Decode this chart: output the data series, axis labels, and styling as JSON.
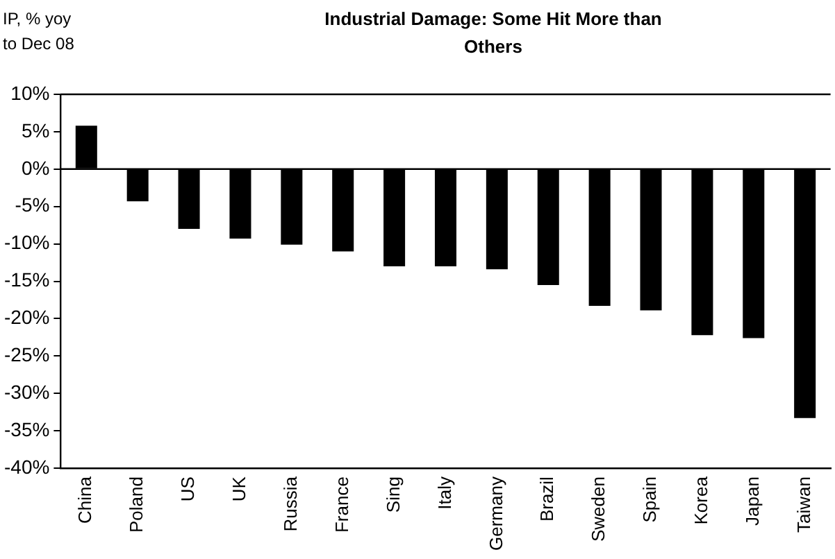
{
  "chart_data": {
    "type": "bar",
    "title": "Industrial Damage: Some Hit More than Others",
    "ylabel": "IP, % yoy to Dec 08",
    "categories": [
      "China",
      "Poland",
      "US",
      "UK",
      "Russia",
      "France",
      "Sing",
      "Italy",
      "Germany",
      "Brazil",
      "Sweden",
      "Spain",
      "Korea",
      "Japan",
      "Taiwan"
    ],
    "values": [
      5.8,
      -4.3,
      -8.0,
      -9.3,
      -10.1,
      -11.0,
      -13.0,
      -13.0,
      -13.4,
      -15.5,
      -18.3,
      -18.9,
      -22.2,
      -22.6,
      -33.3
    ],
    "color": "#000000",
    "ylim": [
      -40,
      10
    ],
    "yticks": [
      {
        "value": -40,
        "label": "-40%"
      },
      {
        "value": -35,
        "label": "-35%"
      },
      {
        "value": -30,
        "label": "-30%"
      },
      {
        "value": -25,
        "label": "-25%"
      },
      {
        "value": -20,
        "label": "-20%"
      },
      {
        "value": -15,
        "label": "-15%"
      },
      {
        "value": -10,
        "label": "-10%"
      },
      {
        "value": -5,
        "label": "-5%"
      },
      {
        "value": 0,
        "label": "0%"
      },
      {
        "value": 5,
        "label": "5%"
      },
      {
        "value": 10,
        "label": "10%"
      }
    ],
    "ref_lines": [
      {
        "axis": "y",
        "value": 0,
        "color": "#000000"
      }
    ],
    "legend": false
  }
}
